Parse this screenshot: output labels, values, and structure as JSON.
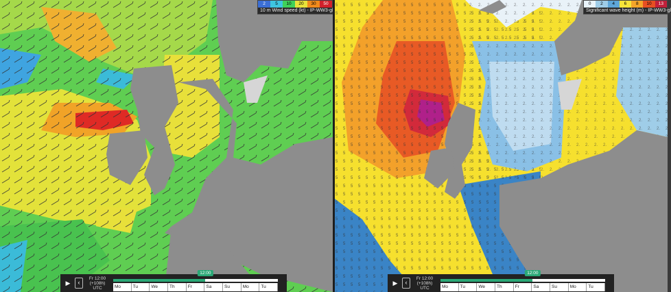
{
  "left_panel": {
    "legend": {
      "values": [
        "2",
        "5",
        "10",
        "20",
        "30",
        "50"
      ],
      "colors": [
        "#3b6fd6",
        "#3ec5e0",
        "#3fd15a",
        "#e8e23a",
        "#f08a1c",
        "#d2202a"
      ],
      "title": "10 m Wind speed (kt) - IP-WW3-gl"
    },
    "timebar": {
      "time_label": "Fr 12:00 (+108h)",
      "tz": "UTC",
      "current": "12:00",
      "days": [
        "Mo",
        "Tu",
        "We",
        "Th",
        "Fr",
        "Sa",
        "Su",
        "Mo",
        "Tu"
      ]
    }
  },
  "right_panel": {
    "legend": {
      "values": [
        "0",
        "2",
        "4",
        "6",
        "8",
        "10",
        "13"
      ],
      "colors": [
        "#eaf4fb",
        "#9fcde8",
        "#5ea6d8",
        "#f6e53a",
        "#f4a52a",
        "#e74f22",
        "#c1203a"
      ],
      "title": "Significant wave height (m) - IP-WW3-gl"
    },
    "timebar": {
      "time_label": "Fr 12:00 (+108h)",
      "tz": "UTC",
      "current": "12:00",
      "days": [
        "Mo",
        "Tu",
        "We",
        "Th",
        "Fr",
        "Sa",
        "Su",
        "Mo",
        "Tu"
      ]
    }
  },
  "controls": {
    "play_icon": "▶",
    "prev_icon": "‹"
  }
}
